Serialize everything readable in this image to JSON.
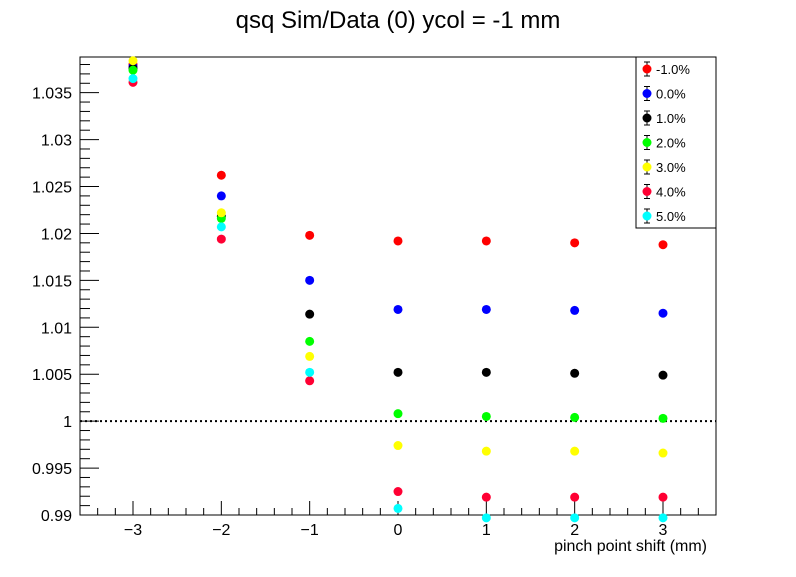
{
  "chart_data": {
    "type": "scatter",
    "title": "qsq Sim/Data (0) ycol = -1 mm",
    "xlabel": "pinch point shift (mm)",
    "ylabel": "",
    "xlim": [
      -3.6,
      3.6
    ],
    "ylim": [
      0.99,
      1.0388
    ],
    "x_ticks": [
      -3,
      -2,
      -1,
      0,
      1,
      2,
      3
    ],
    "x_tick_labels": [
      "−3",
      "−2",
      "−1",
      "0",
      "1",
      "2",
      "3"
    ],
    "y_ticks": [
      0.99,
      0.995,
      1,
      1.005,
      1.01,
      1.015,
      1.02,
      1.025,
      1.03,
      1.035
    ],
    "y_tick_labels": [
      "0.99",
      "0.995",
      "1",
      "1.005",
      "1.01",
      "1.015",
      "1.02",
      "1.025",
      "1.03",
      "1.035"
    ],
    "x": [
      -3,
      -2,
      -1,
      0,
      1,
      2,
      3
    ],
    "reference_line": {
      "y": 1,
      "style": "dotted"
    },
    "legend_position": "top-right",
    "series": [
      {
        "name": "-1.0%",
        "color": "#ff0000",
        "values": [
          1.038,
          1.0262,
          1.0198,
          1.0192,
          1.0192,
          1.019,
          1.0188
        ]
      },
      {
        "name": "0.0%",
        "color": "#0000ff",
        "values": [
          1.0378,
          1.024,
          1.015,
          1.0119,
          1.0119,
          1.0118,
          1.0115
        ]
      },
      {
        "name": "1.0%",
        "color": "#000000",
        "values": [
          1.0376,
          1.0218,
          1.0114,
          1.0052,
          1.0052,
          1.0051,
          1.0049
        ]
      },
      {
        "name": "2.0%",
        "color": "#00ff00",
        "values": [
          1.0374,
          1.0216,
          1.0085,
          1.0008,
          1.0005,
          1.0004,
          1.0003
        ]
      },
      {
        "name": "3.0%",
        "color": "#ffff00",
        "values": [
          1.0384,
          1.0222,
          1.0069,
          0.9974,
          0.9968,
          0.9968,
          0.9966
        ]
      },
      {
        "name": "4.0%",
        "color": "#ff0033",
        "values": [
          1.0361,
          1.0194,
          1.0043,
          0.9925,
          0.9919,
          0.9919,
          0.9919
        ]
      },
      {
        "name": "5.0%",
        "color": "#00ffff",
        "values": [
          1.0365,
          1.0207,
          1.0052,
          0.9907,
          0.9897,
          0.9897,
          0.9897
        ]
      }
    ]
  }
}
